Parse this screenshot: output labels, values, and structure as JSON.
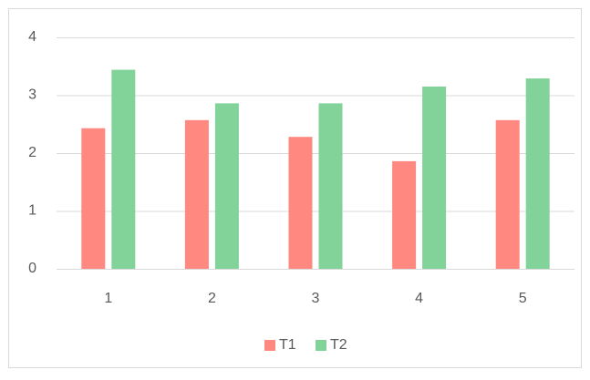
{
  "chart_data": {
    "type": "bar",
    "categories": [
      "1",
      "2",
      "3",
      "4",
      "5"
    ],
    "series": [
      {
        "name": "T1",
        "color": "#ff8880",
        "values": [
          2.43,
          2.57,
          2.28,
          1.86,
          2.57
        ]
      },
      {
        "name": "T2",
        "color": "#82d39a",
        "values": [
          3.44,
          2.86,
          2.86,
          3.15,
          3.29
        ]
      }
    ],
    "ylim": [
      0,
      4
    ],
    "yticks": [
      0,
      1,
      2,
      3,
      4
    ],
    "grid": true,
    "legend": "bottom"
  }
}
